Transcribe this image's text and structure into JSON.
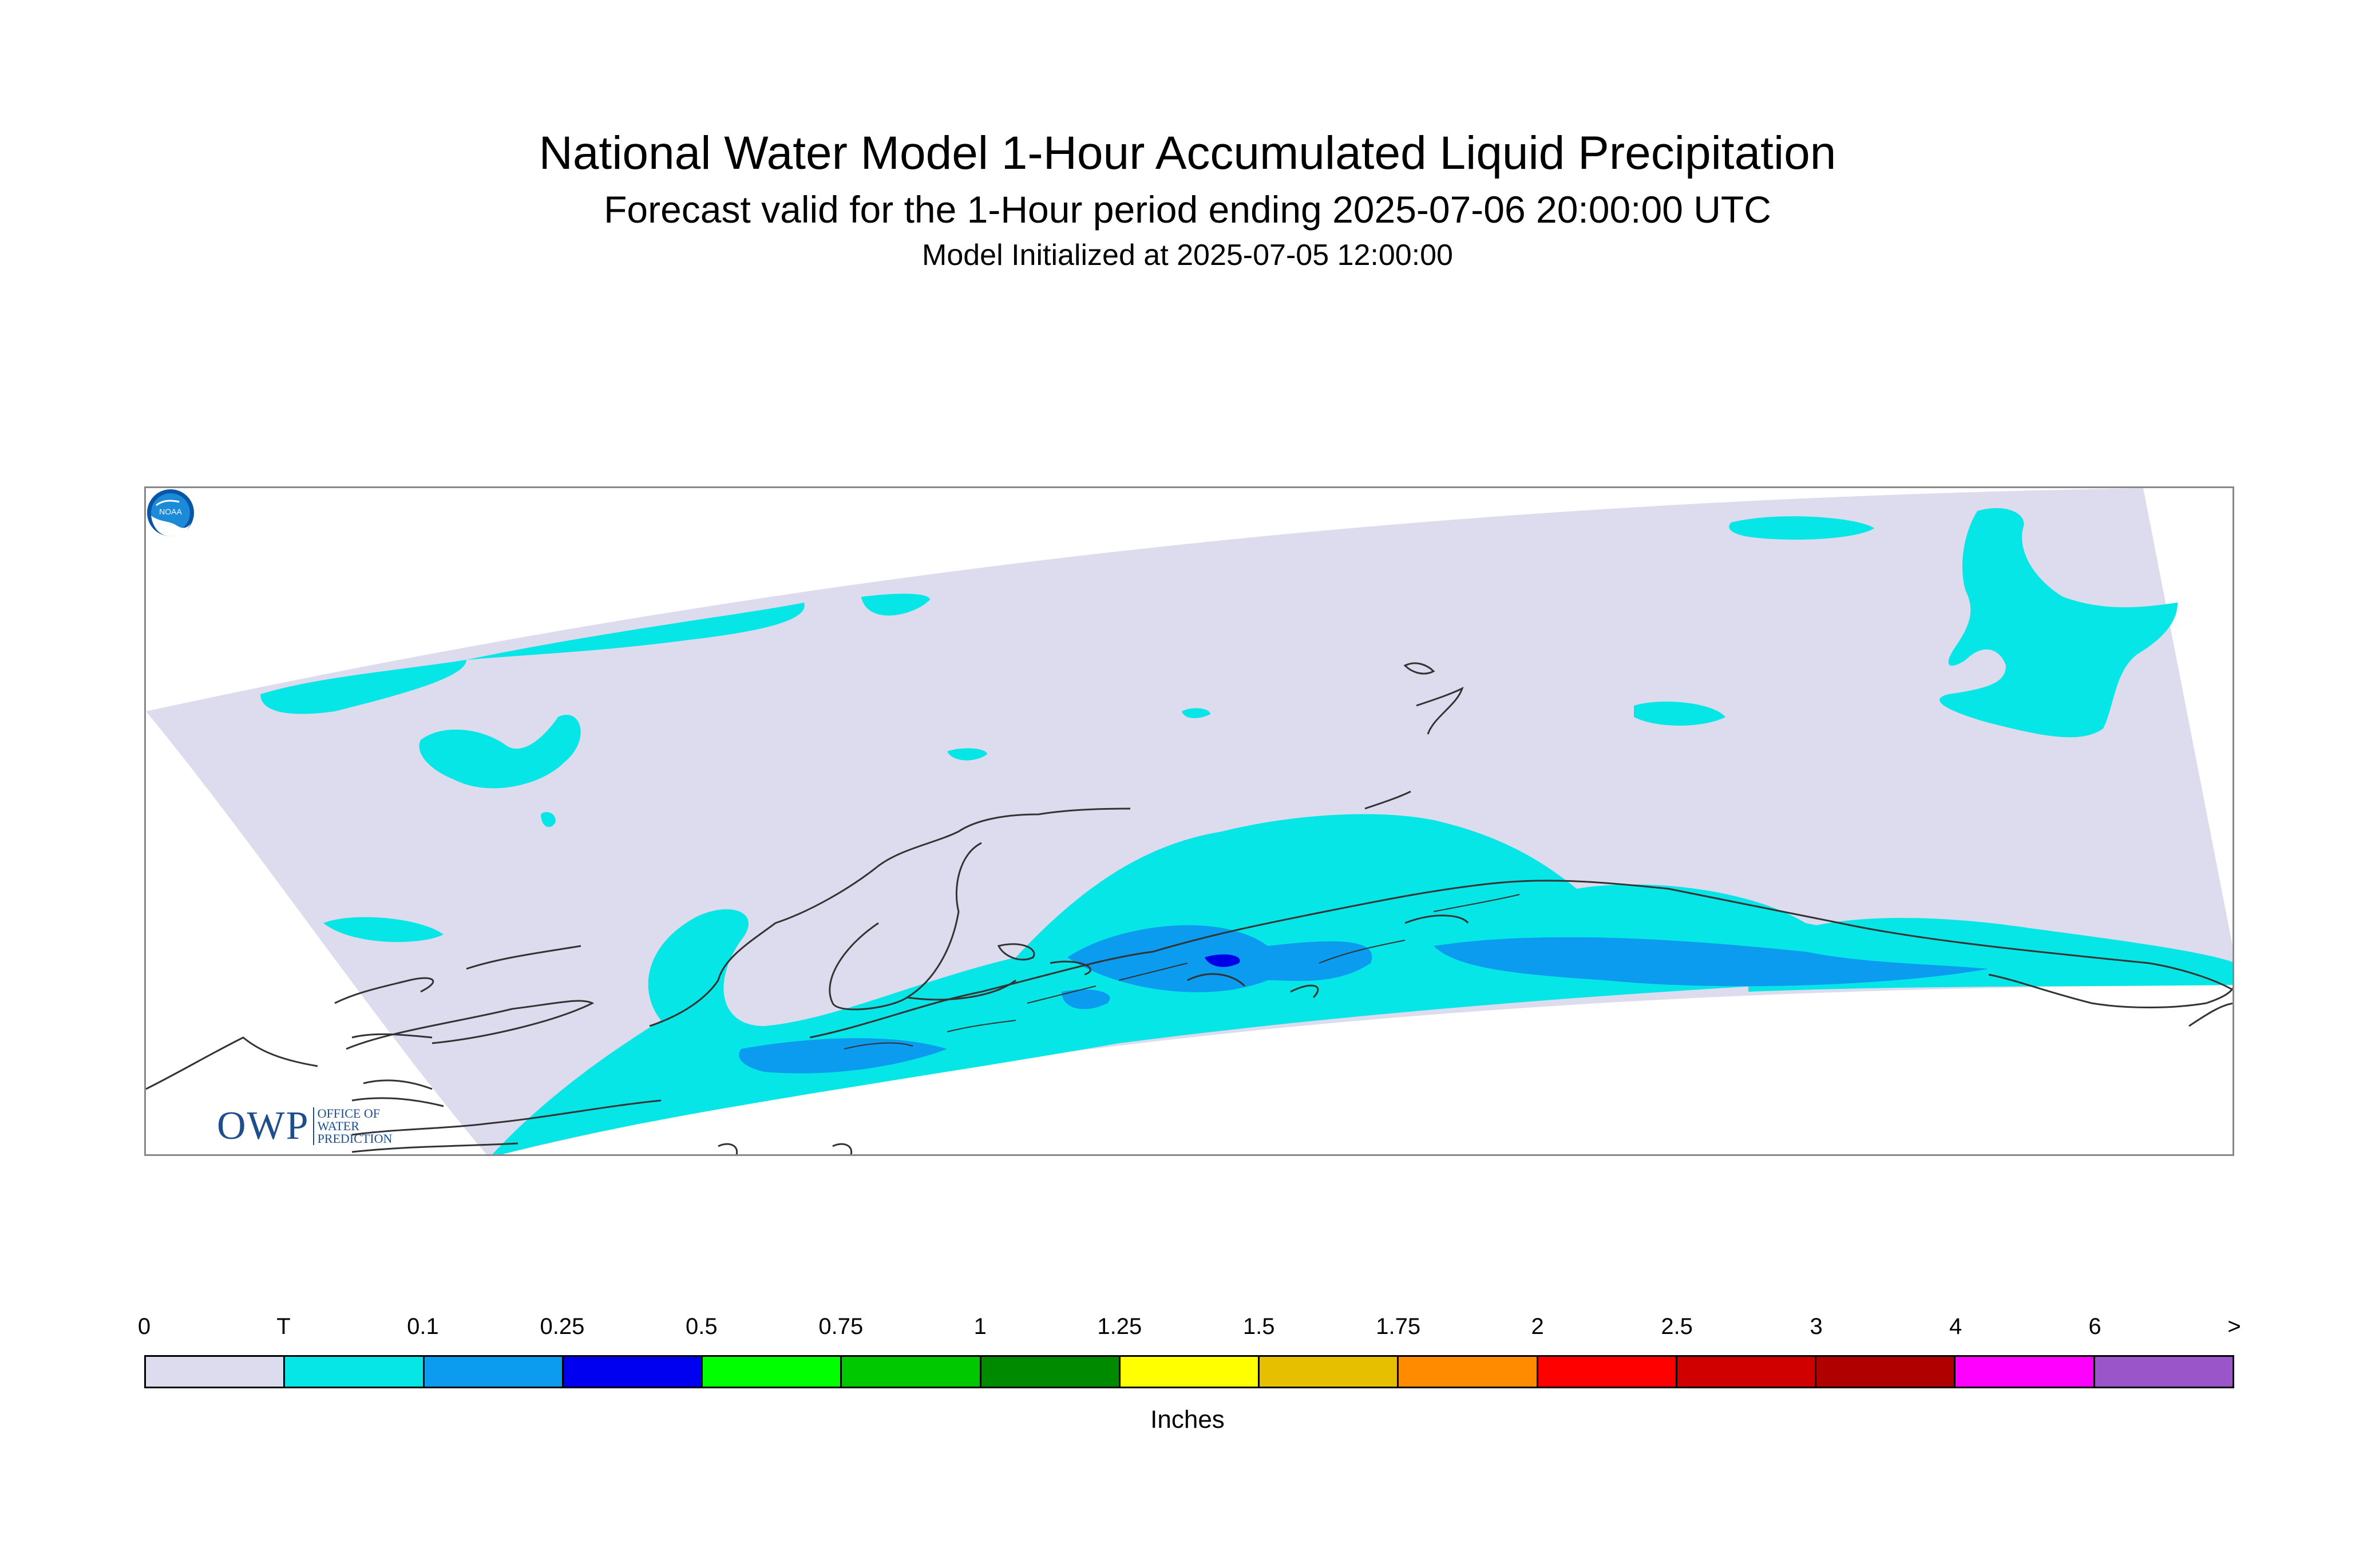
{
  "header": {
    "title": "National Water Model 1-Hour Accumulated Liquid Precipitation",
    "subtitle": "Forecast valid for the 1-Hour period ending 2025-07-06 20:00:00 UTC",
    "init": "Model Initialized at 2025-07-05 12:00:00"
  },
  "logos": {
    "owp_mark": "OWP",
    "owp_line1": "OFFICE OF",
    "owp_line2": "WATER",
    "owp_line3": "PREDICTION",
    "noaa_text": "NOAA"
  },
  "colors": {
    "domain_zero": "#dcdcee",
    "trace": "#06e6e6",
    "light_blue": "#0b9cf0",
    "deep_blue": "#0000e8",
    "coastline": "#333333"
  },
  "legend": {
    "labels": [
      "0",
      "T",
      "0.1",
      "0.25",
      "0.5",
      "0.75",
      "1",
      "1.25",
      "1.5",
      "1.75",
      "2",
      "2.5",
      "3",
      "4",
      "6",
      ">"
    ],
    "colors": [
      "#dcdcee",
      "#06e6e6",
      "#0b9cf0",
      "#0000f0",
      "#00ff00",
      "#00c800",
      "#008a00",
      "#ffff00",
      "#e6c000",
      "#ff8c00",
      "#ff0000",
      "#d00000",
      "#b00000",
      "#ff00ff",
      "#9a55c8"
    ],
    "units": "Inches"
  }
}
